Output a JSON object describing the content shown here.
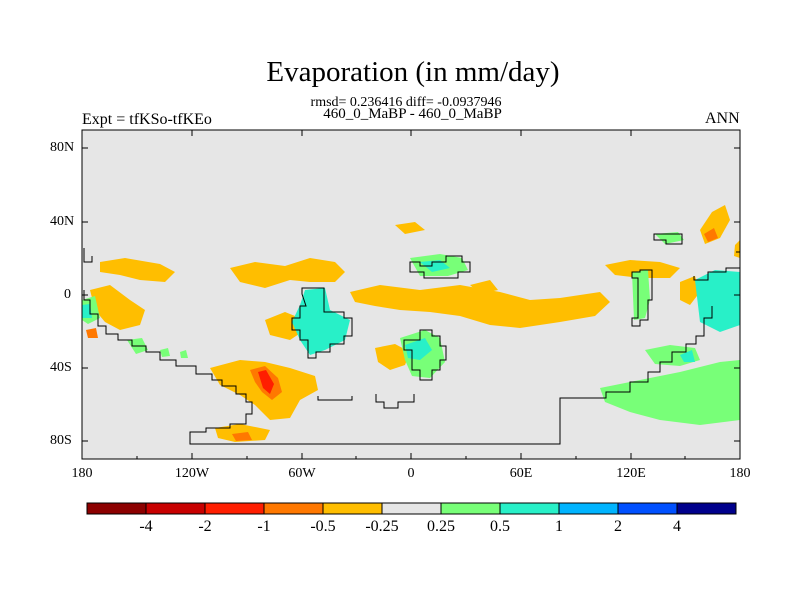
{
  "title": "Evaporation (in mm/day)",
  "stats_line": "rmsd= 0.236416 diff= -0.0937946",
  "period_line": "460_0_MaBP - 460_0_MaBP",
  "expt_label": "Expt = tfKSo-tfKEo",
  "season_label": "ANN",
  "map": {
    "projection": "cylindrical equidistant",
    "lon_range": [
      -180,
      180
    ],
    "lat_range": [
      -90,
      90
    ],
    "background_color": "#e6e6e6",
    "lat_labels": [
      "80N",
      "40N",
      "0",
      "40S",
      "80S"
    ],
    "lon_labels": [
      "180",
      "120W",
      "60W",
      "0",
      "60E",
      "120E",
      "180"
    ]
  },
  "colorbar": {
    "colors": [
      "#8c0000",
      "#c80000",
      "#ff1e00",
      "#ff7800",
      "#ffbe00",
      "#e6e6e6",
      "#78ff78",
      "#28f0c8",
      "#00b4ff",
      "#0050ff",
      "#00008c"
    ],
    "tick_labels": [
      "-4",
      "-2",
      "-1",
      "-0.5",
      "-0.25",
      "0.25",
      "0.5",
      "1",
      "2",
      "4"
    ]
  }
}
